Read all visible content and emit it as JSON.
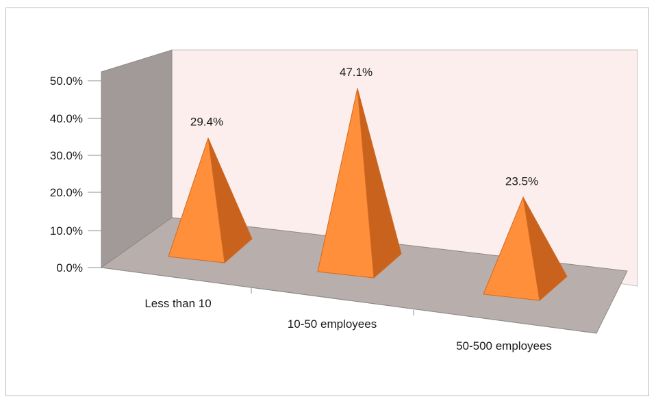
{
  "chart_data": {
    "type": "bar",
    "style": "3d-pyramid",
    "categories": [
      "Less than 10",
      "10-50 employees",
      "50-500 employees"
    ],
    "values": [
      29.4,
      47.1,
      23.5
    ],
    "data_labels": [
      "29.4%",
      "47.1%",
      "23.5%"
    ],
    "ylim": [
      0,
      50
    ],
    "y_ticks": [
      0,
      10,
      20,
      30,
      40,
      50
    ],
    "y_tick_labels": [
      "0.0%",
      "10.0%",
      "20.0%",
      "30.0%",
      "40.0%",
      "50.0%"
    ],
    "title": "",
    "xlabel": "",
    "ylabel": "",
    "legend": "none",
    "grid": false,
    "colors": {
      "pyramid_front": "#ff8f3a",
      "pyramid_side": "#c8621c",
      "pyramid_edge": "#d06a20",
      "back_wall": "#fbeeed",
      "side_wall": "#a29a98",
      "floor": "#b8aeac"
    }
  }
}
